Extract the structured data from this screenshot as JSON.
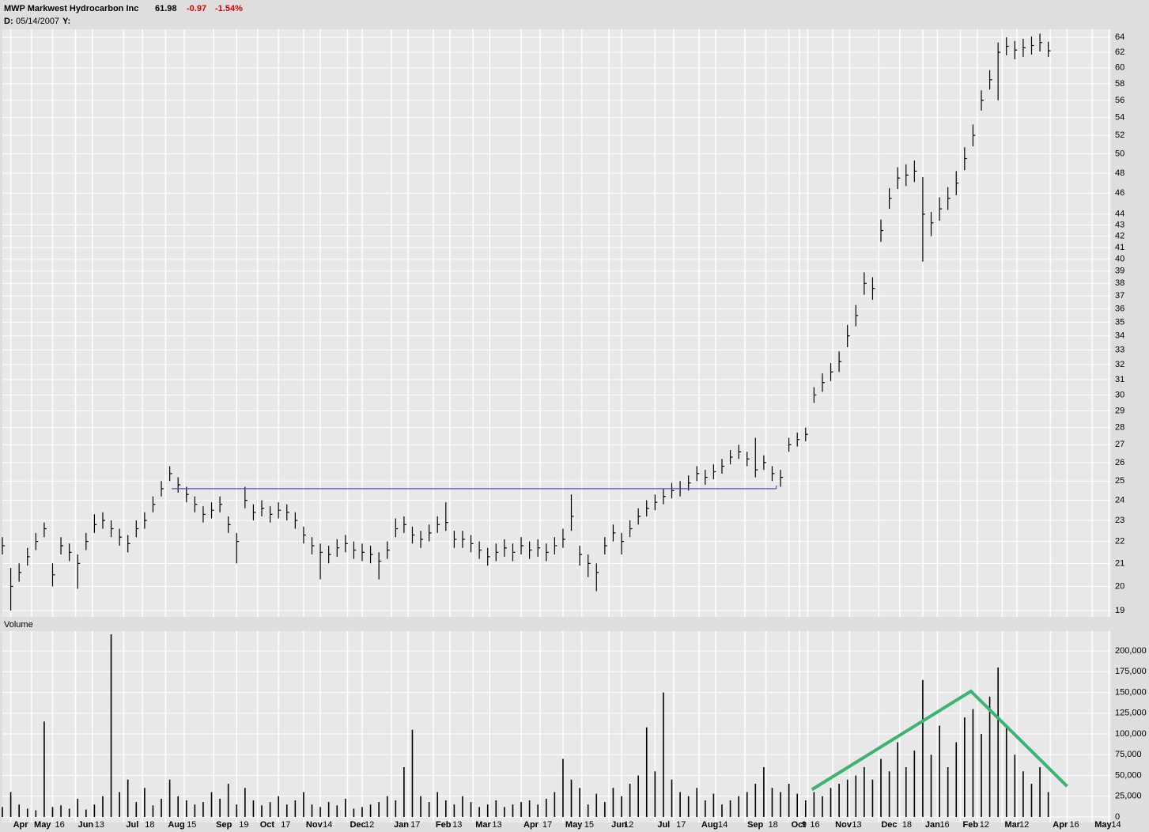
{
  "header": {
    "symbol": "MWP Markwest Hydrocarbon Inc",
    "last": "61.98",
    "change": "-0.97",
    "change_pct": "-1.54%",
    "date_label": "D:",
    "date": "05/14/2007",
    "y_label": "Y:"
  },
  "chart_data": [
    {
      "type": "ohlc",
      "log_scale": true,
      "grid": true,
      "color": "#000000",
      "xlim": [
        0,
        530
      ],
      "ylim": [
        18.75,
        65.1
      ],
      "yticks": [
        19,
        20,
        21,
        22,
        23,
        24,
        25,
        26,
        27,
        28,
        29,
        30,
        31,
        32,
        33,
        34,
        35,
        36,
        37,
        38,
        39,
        40,
        41,
        42,
        43,
        44,
        46,
        48,
        50,
        52,
        54,
        56,
        58,
        60,
        62,
        64
      ],
      "x": [
        0,
        4,
        8,
        12,
        16,
        20,
        24,
        28,
        32,
        36,
        40,
        44,
        48,
        52,
        56,
        60,
        64,
        68,
        72,
        76,
        80,
        84,
        88,
        92,
        96,
        100,
        104,
        108,
        112,
        116,
        120,
        124,
        128,
        132,
        136,
        140,
        144,
        148,
        152,
        156,
        160,
        164,
        168,
        172,
        176,
        180,
        184,
        188,
        192,
        196,
        200,
        204,
        208,
        212,
        216,
        220,
        224,
        228,
        232,
        236,
        240,
        244,
        248,
        252,
        256,
        260,
        264,
        268,
        272,
        276,
        280,
        284,
        288,
        292,
        296,
        300,
        304,
        308,
        312,
        316,
        320,
        324,
        328,
        332,
        336,
        340,
        344,
        348,
        352,
        356,
        360,
        364,
        368,
        372,
        376,
        380,
        384,
        388,
        392,
        396,
        400,
        404,
        408,
        412,
        416,
        420,
        424,
        428,
        432,
        436,
        440,
        444,
        448,
        452,
        456,
        460,
        464,
        468,
        472,
        476,
        480,
        484,
        488,
        492,
        496,
        500
      ],
      "high": [
        22.2,
        20.8,
        21.0,
        21.7,
        22.4,
        22.9,
        21.0,
        22.2,
        21.9,
        21.4,
        22.4,
        23.3,
        23.4,
        23.0,
        22.6,
        22.3,
        23.0,
        23.4,
        24.2,
        25.0,
        25.8,
        25.2,
        24.7,
        24.2,
        23.7,
        23.9,
        24.2,
        23.2,
        22.4,
        24.7,
        23.8,
        24.0,
        23.7,
        23.9,
        23.8,
        23.4,
        22.7,
        22.2,
        21.9,
        21.8,
        22.1,
        22.3,
        22.0,
        21.9,
        21.8,
        21.5,
        22.0,
        23.1,
        23.2,
        22.7,
        22.5,
        22.8,
        23.2,
        23.9,
        22.5,
        22.5,
        22.3,
        22.0,
        21.7,
        21.9,
        22.1,
        21.9,
        22.2,
        22.0,
        22.1,
        21.9,
        22.2,
        22.6,
        24.3,
        21.8,
        21.4,
        21.0,
        22.2,
        22.8,
        22.4,
        23.0,
        23.6,
        24.0,
        24.3,
        24.6,
        24.9,
        25.0,
        25.3,
        25.8,
        25.6,
        25.9,
        26.2,
        26.7,
        27.0,
        26.6,
        27.4,
        26.4,
        25.8,
        25.6,
        27.4,
        27.7,
        28.0,
        30.5,
        31.4,
        32.1,
        32.9,
        34.8,
        36.3,
        38.9,
        38.5,
        43.5,
        46.5,
        48.6,
        48.9,
        49.3,
        47.6,
        44.2,
        45.6,
        46.6,
        48.2,
        50.7,
        53.2,
        57.2,
        59.7,
        63.3,
        64.0,
        63.5,
        63.8,
        64.1,
        64.5,
        63.4
      ],
      "low": [
        21.4,
        19.0,
        20.2,
        20.9,
        21.6,
        22.2,
        20.0,
        21.4,
        21.1,
        19.9,
        21.6,
        22.4,
        22.6,
        22.2,
        21.8,
        21.5,
        22.2,
        22.6,
        23.4,
        24.2,
        25.0,
        24.4,
        23.9,
        23.4,
        22.9,
        23.1,
        23.4,
        22.4,
        21.0,
        23.6,
        23.0,
        23.2,
        22.9,
        23.1,
        23.0,
        22.6,
        21.9,
        21.4,
        20.3,
        21.0,
        21.3,
        21.5,
        21.2,
        21.1,
        21.0,
        20.3,
        21.2,
        22.2,
        22.4,
        21.9,
        21.7,
        22.0,
        22.4,
        22.5,
        21.7,
        21.7,
        21.5,
        21.2,
        20.9,
        21.1,
        21.3,
        21.1,
        21.4,
        21.2,
        21.3,
        21.1,
        21.4,
        21.7,
        22.5,
        20.9,
        20.4,
        19.8,
        21.4,
        22.0,
        21.4,
        22.2,
        22.8,
        23.2,
        23.5,
        23.8,
        24.1,
        24.2,
        24.5,
        25.0,
        24.8,
        25.1,
        25.4,
        25.9,
        26.2,
        25.8,
        25.2,
        25.6,
        25.0,
        24.7,
        26.6,
        26.9,
        27.2,
        29.5,
        30.2,
        30.9,
        31.5,
        33.2,
        34.7,
        37.1,
        36.7,
        41.5,
        44.5,
        46.4,
        46.7,
        47.1,
        39.8,
        42.0,
        43.4,
        44.4,
        45.8,
        48.3,
        50.8,
        54.8,
        57.3,
        56.0,
        61.6,
        61.1,
        61.4,
        61.7,
        62.1,
        61.4
      ],
      "close": [
        21.8,
        20.0,
        20.6,
        21.3,
        22.0,
        22.6,
        20.5,
        21.8,
        21.5,
        21.0,
        22.0,
        22.8,
        23.0,
        22.6,
        22.2,
        21.9,
        22.6,
        23.0,
        23.8,
        24.6,
        25.4,
        24.8,
        24.3,
        23.8,
        23.3,
        23.5,
        23.8,
        22.8,
        22.0,
        24.0,
        23.4,
        23.6,
        23.3,
        23.5,
        23.4,
        23.0,
        22.3,
        21.8,
        21.5,
        21.4,
        21.7,
        21.9,
        21.6,
        21.5,
        21.4,
        21.1,
        21.6,
        22.6,
        22.8,
        22.3,
        22.1,
        22.4,
        22.8,
        22.9,
        22.1,
        22.1,
        21.9,
        21.6,
        21.3,
        21.5,
        21.7,
        21.5,
        21.8,
        21.6,
        21.7,
        21.5,
        21.8,
        22.1,
        23.2,
        21.4,
        21.0,
        20.6,
        21.8,
        22.4,
        22.0,
        22.6,
        23.2,
        23.6,
        23.9,
        24.2,
        24.5,
        24.6,
        24.9,
        25.4,
        25.2,
        25.5,
        25.8,
        26.3,
        26.6,
        26.2,
        25.6,
        26.0,
        25.4,
        25.2,
        27.0,
        27.3,
        27.6,
        30.0,
        30.8,
        31.5,
        32.2,
        34.0,
        35.5,
        38.0,
        37.6,
        42.5,
        45.5,
        47.5,
        47.8,
        48.2,
        44.0,
        43.2,
        44.5,
        45.5,
        47.0,
        49.5,
        52.0,
        56.0,
        58.5,
        62.0,
        62.8,
        62.3,
        62.6,
        62.9,
        63.3,
        62.2
      ],
      "resistance": {
        "x": [
          81,
          370
        ],
        "value": 24.6,
        "color": "#6a3fc8"
      }
    },
    {
      "type": "bar",
      "title": "Volume",
      "grid": true,
      "color": "#000000",
      "xlim": [
        0,
        530
      ],
      "ylim": [
        0,
        222000
      ],
      "yticks": [
        0,
        {
          "value": 25000,
          "label": "25,000"
        },
        {
          "value": 50000,
          "label": "50,000"
        },
        {
          "value": 75000,
          "label": "75,000"
        },
        {
          "value": 100000,
          "label": "100,000"
        },
        {
          "value": 125000,
          "label": "125,000"
        },
        {
          "value": 150000,
          "label": "150,000"
        },
        {
          "value": 175000,
          "label": "175,000"
        },
        {
          "value": 200000,
          "label": "200,000"
        }
      ],
      "xticks": [
        {
          "value": 4,
          "label": "Apr"
        },
        {
          "value": 14,
          "label": "May"
        },
        {
          "value": 24,
          "label": "16"
        },
        {
          "value": 35,
          "label": "Jun"
        },
        {
          "value": 43,
          "label": "13"
        },
        {
          "value": 58,
          "label": "Jul"
        },
        {
          "value": 67,
          "label": "18"
        },
        {
          "value": 78,
          "label": "Aug"
        },
        {
          "value": 87,
          "label": "15"
        },
        {
          "value": 101,
          "label": "Sep"
        },
        {
          "value": 112,
          "label": "19"
        },
        {
          "value": 122,
          "label": "Oct"
        },
        {
          "value": 132,
          "label": "17"
        },
        {
          "value": 144,
          "label": "Nov"
        },
        {
          "value": 152,
          "label": "14"
        },
        {
          "value": 165,
          "label": "Dec"
        },
        {
          "value": 172,
          "label": "12"
        },
        {
          "value": 186,
          "label": "Jan"
        },
        {
          "value": 194,
          "label": "17"
        },
        {
          "value": 206,
          "label": "Feb"
        },
        {
          "value": 214,
          "label": "13"
        },
        {
          "value": 225,
          "label": "Mar"
        },
        {
          "value": 233,
          "label": "13"
        },
        {
          "value": 248,
          "label": "Apr"
        },
        {
          "value": 257,
          "label": "17"
        },
        {
          "value": 268,
          "label": "May"
        },
        {
          "value": 277,
          "label": "15"
        },
        {
          "value": 290,
          "label": "Jun"
        },
        {
          "value": 296,
          "label": "12"
        },
        {
          "value": 312,
          "label": "Jul"
        },
        {
          "value": 321,
          "label": "17"
        },
        {
          "value": 333,
          "label": "Aug"
        },
        {
          "value": 341,
          "label": "14"
        },
        {
          "value": 355,
          "label": "Sep"
        },
        {
          "value": 365,
          "label": "18"
        },
        {
          "value": 376,
          "label": "Oct"
        },
        {
          "value": 381,
          "label": "9"
        },
        {
          "value": 385,
          "label": "16"
        },
        {
          "value": 397,
          "label": "Nov"
        },
        {
          "value": 405,
          "label": "13"
        },
        {
          "value": 419,
          "label": "Dec"
        },
        {
          "value": 429,
          "label": "18"
        },
        {
          "value": 440,
          "label": "Jan"
        },
        {
          "value": 447,
          "label": "16"
        },
        {
          "value": 458,
          "label": "Feb"
        },
        {
          "value": 466,
          "label": "12"
        },
        {
          "value": 478,
          "label": "Mar"
        },
        {
          "value": 485,
          "label": "12"
        },
        {
          "value": 501,
          "label": "Apr"
        },
        {
          "value": 509,
          "label": "16"
        },
        {
          "value": 521,
          "label": "May"
        },
        {
          "value": 529,
          "label": "14"
        }
      ],
      "x": [
        0,
        4,
        8,
        12,
        16,
        20,
        24,
        28,
        32,
        36,
        40,
        44,
        48,
        52,
        56,
        60,
        64,
        68,
        72,
        76,
        80,
        84,
        88,
        92,
        96,
        100,
        104,
        108,
        112,
        116,
        120,
        124,
        128,
        132,
        136,
        140,
        144,
        148,
        152,
        156,
        160,
        164,
        168,
        172,
        176,
        180,
        184,
        188,
        192,
        196,
        200,
        204,
        208,
        212,
        216,
        220,
        224,
        228,
        232,
        236,
        240,
        244,
        248,
        252,
        256,
        260,
        264,
        268,
        272,
        276,
        280,
        284,
        288,
        292,
        296,
        300,
        304,
        308,
        312,
        316,
        320,
        324,
        328,
        332,
        336,
        340,
        344,
        348,
        352,
        356,
        360,
        364,
        368,
        372,
        376,
        380,
        384,
        388,
        392,
        396,
        400,
        404,
        408,
        412,
        416,
        420,
        424,
        428,
        432,
        436,
        440,
        444,
        448,
        452,
        456,
        460,
        464,
        468,
        472,
        476,
        480,
        484,
        488,
        492,
        496,
        500
      ],
      "values": [
        12000,
        30000,
        15000,
        10000,
        8000,
        115000,
        12000,
        14000,
        10000,
        22000,
        9000,
        15000,
        25000,
        220000,
        30000,
        45000,
        18000,
        35000,
        14000,
        22000,
        45000,
        25000,
        20000,
        15000,
        18000,
        30000,
        22000,
        40000,
        15000,
        35000,
        20000,
        14000,
        18000,
        25000,
        15000,
        20000,
        30000,
        15000,
        12000,
        18000,
        14000,
        22000,
        10000,
        12000,
        15000,
        18000,
        25000,
        20000,
        60000,
        105000,
        25000,
        18000,
        30000,
        20000,
        15000,
        25000,
        18000,
        12000,
        15000,
        20000,
        12000,
        15000,
        18000,
        20000,
        15000,
        22000,
        30000,
        70000,
        45000,
        35000,
        15000,
        28000,
        18000,
        35000,
        25000,
        40000,
        50000,
        108000,
        55000,
        150000,
        45000,
        30000,
        25000,
        35000,
        20000,
        28000,
        15000,
        20000,
        25000,
        30000,
        40000,
        60000,
        35000,
        30000,
        40000,
        28000,
        20000,
        30000,
        25000,
        35000,
        40000,
        45000,
        50000,
        60000,
        45000,
        70000,
        55000,
        90000,
        60000,
        80000,
        165000,
        75000,
        110000,
        60000,
        90000,
        120000,
        130000,
        100000,
        145000,
        180000,
        110000,
        75000,
        55000,
        40000,
        60000,
        30000
      ],
      "trendline": {
        "x": [
          387,
          463,
          509
        ],
        "values": [
          33000,
          151500,
          37000
        ],
        "color": "#3cb371"
      }
    }
  ]
}
